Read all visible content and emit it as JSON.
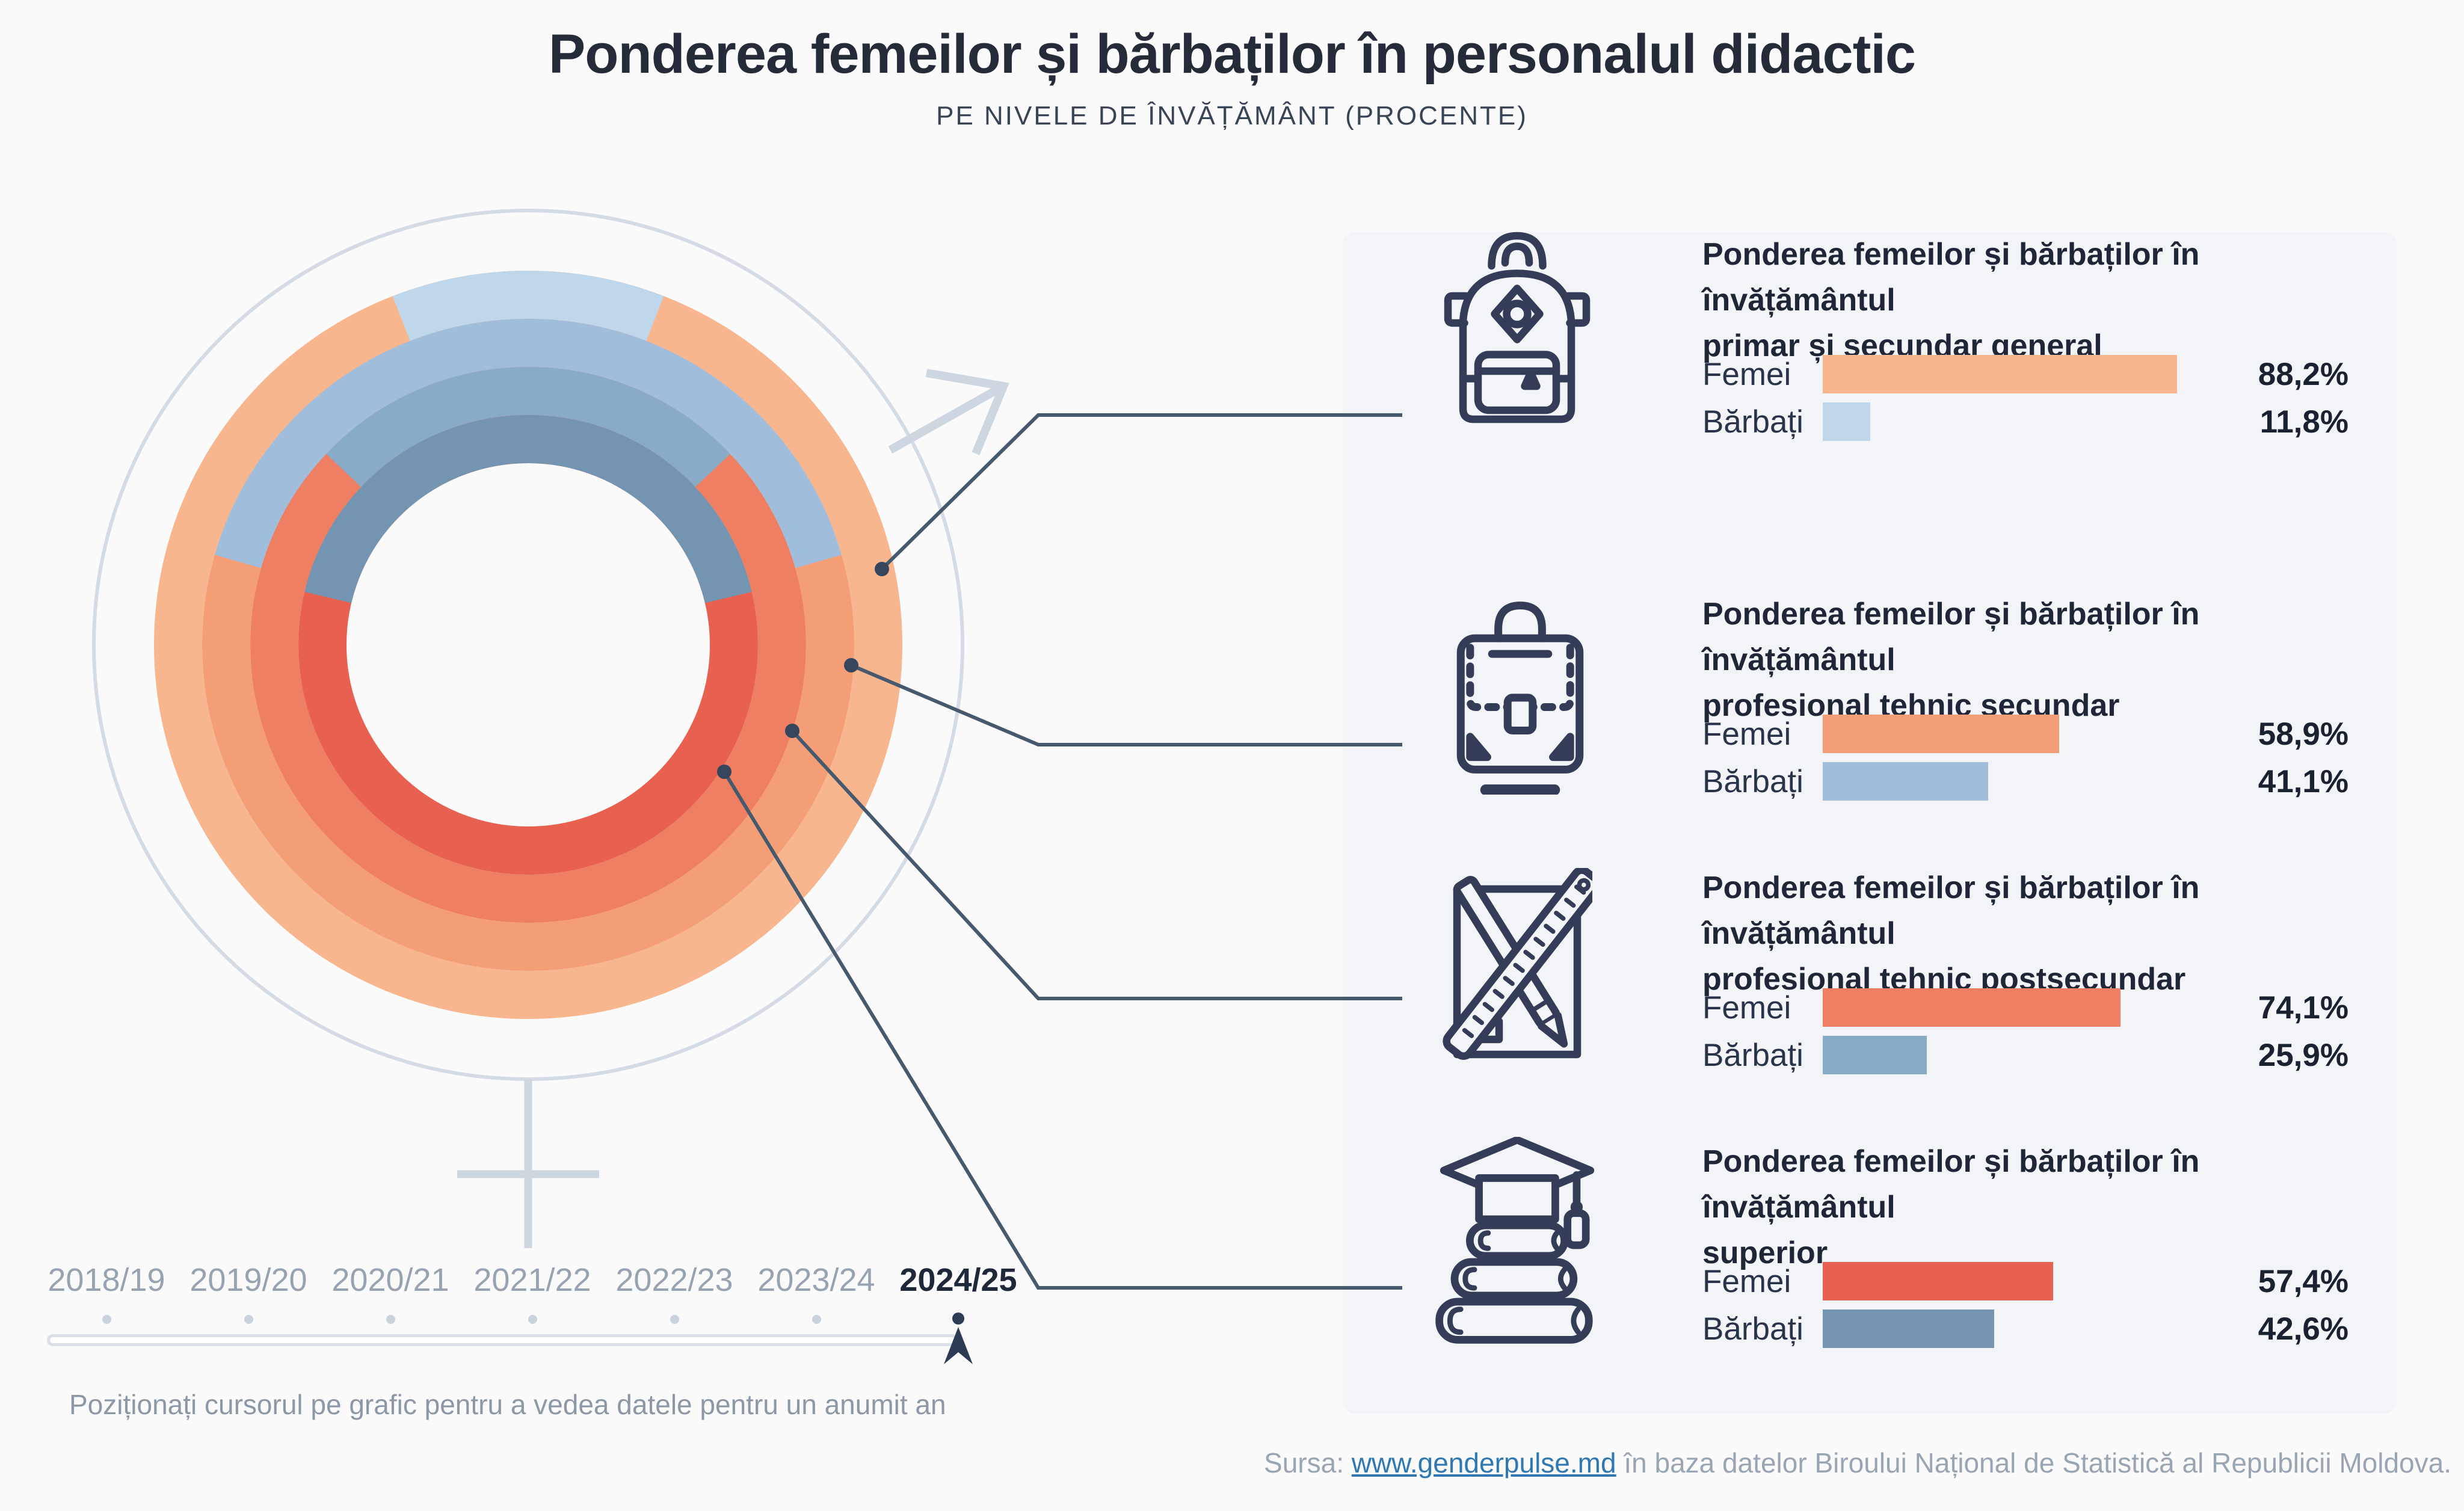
{
  "page": {
    "background": "#FAFAFB",
    "panel_background": "#F2F4F7"
  },
  "header": {
    "title": "Ponderea femeilor și bărbaților în personalul didactic",
    "subtitle": "PE NIVELE DE ÎNVĂȚĂMÂNT (PROCENTE)"
  },
  "chart_data": {
    "type": "donut-rings",
    "title": "Ponderea femeilor și bărbaților în personalul didactic",
    "subtitle": "Pe nivele de învățământ (procente)",
    "year": "2024/25",
    "legend": {
      "femei": "Femei",
      "barbati": "Bărbați"
    },
    "rings": [
      {
        "level": "Învățământul primar și secundar general",
        "femei": 88.2,
        "barbati": 11.8,
        "femei_color": "#F8B68E",
        "barbati_color": "#BED7EB"
      },
      {
        "level": "Învățământul profesional tehnic secundar",
        "femei": 58.9,
        "barbati": 41.1,
        "femei_color": "#F49E78",
        "barbati_color": "#A0BEDB"
      },
      {
        "level": "Învățământul profesional tehnic postsecundar",
        "femei": 74.1,
        "barbati": 25.9,
        "femei_color": "#EE7F62",
        "barbati_color": "#88ABC8"
      },
      {
        "level": "Învățământul superior",
        "femei": 57.4,
        "barbati": 42.6,
        "femei_color": "#E86050",
        "barbati_color": "#7495B1"
      }
    ],
    "layout_hint": "blue arcs (barbati) centered at 12 o'clock; outer ring = primar/secundar general; rings inward follow list order"
  },
  "sections": [
    {
      "icon": "backpack-icon",
      "title_lines": [
        "Ponderea femeilor și bărbaților în învățământul",
        "primar și secundar general"
      ],
      "rows": [
        {
          "label": "Femei",
          "value": 88.2,
          "display": "88,2%",
          "color": "#F8B68E"
        },
        {
          "label": "Bărbați",
          "value": 11.8,
          "display": "11,8%",
          "color": "#BED7EB"
        }
      ]
    },
    {
      "icon": "briefcase-icon",
      "title_lines": [
        "Ponderea femeilor și bărbaților în învățământul",
        "profesional tehnic secundar"
      ],
      "rows": [
        {
          "label": "Femei",
          "value": 58.9,
          "display": "58,9%",
          "color": "#F49E78"
        },
        {
          "label": "Bărbați",
          "value": 41.1,
          "display": "41,1%",
          "color": "#A0BEDB"
        }
      ]
    },
    {
      "icon": "pencil-ruler-icon",
      "title_lines": [
        "Ponderea femeilor și bărbaților în învățământul",
        "profesional tehnic postsecundar"
      ],
      "rows": [
        {
          "label": "Femei",
          "value": 74.1,
          "display": "74,1%",
          "color": "#EE7F62"
        },
        {
          "label": "Bărbați",
          "value": 25.9,
          "display": "25,9%",
          "color": "#88ABC8"
        }
      ]
    },
    {
      "icon": "graduation-books-icon",
      "title_lines": [
        "Ponderea femeilor și bărbaților în învățământul",
        "superior"
      ],
      "rows": [
        {
          "label": "Femei",
          "value": 57.4,
          "display": "57,4%",
          "color": "#E86050"
        },
        {
          "label": "Bărbați",
          "value": 42.6,
          "display": "42,6%",
          "color": "#7495B1"
        }
      ]
    }
  ],
  "timeline": {
    "years": [
      {
        "label": "2018/19",
        "active": false
      },
      {
        "label": "2019/20",
        "active": false
      },
      {
        "label": "2020/21",
        "active": false
      },
      {
        "label": "2021/22",
        "active": false
      },
      {
        "label": "2022/23",
        "active": false
      },
      {
        "label": "2023/24",
        "active": false
      },
      {
        "label": "2024/25",
        "active": true
      }
    ],
    "hint": "Poziționați cursorul pe grafic pentru a vedea datele pentru un anumit an"
  },
  "footer": {
    "prefix": "Sursa: ",
    "link": "www.genderpulse.md",
    "suffix": " în baza datelor Biroului Național de Statistică al Republicii Moldova.",
    "link_color": "#2F78B3"
  }
}
